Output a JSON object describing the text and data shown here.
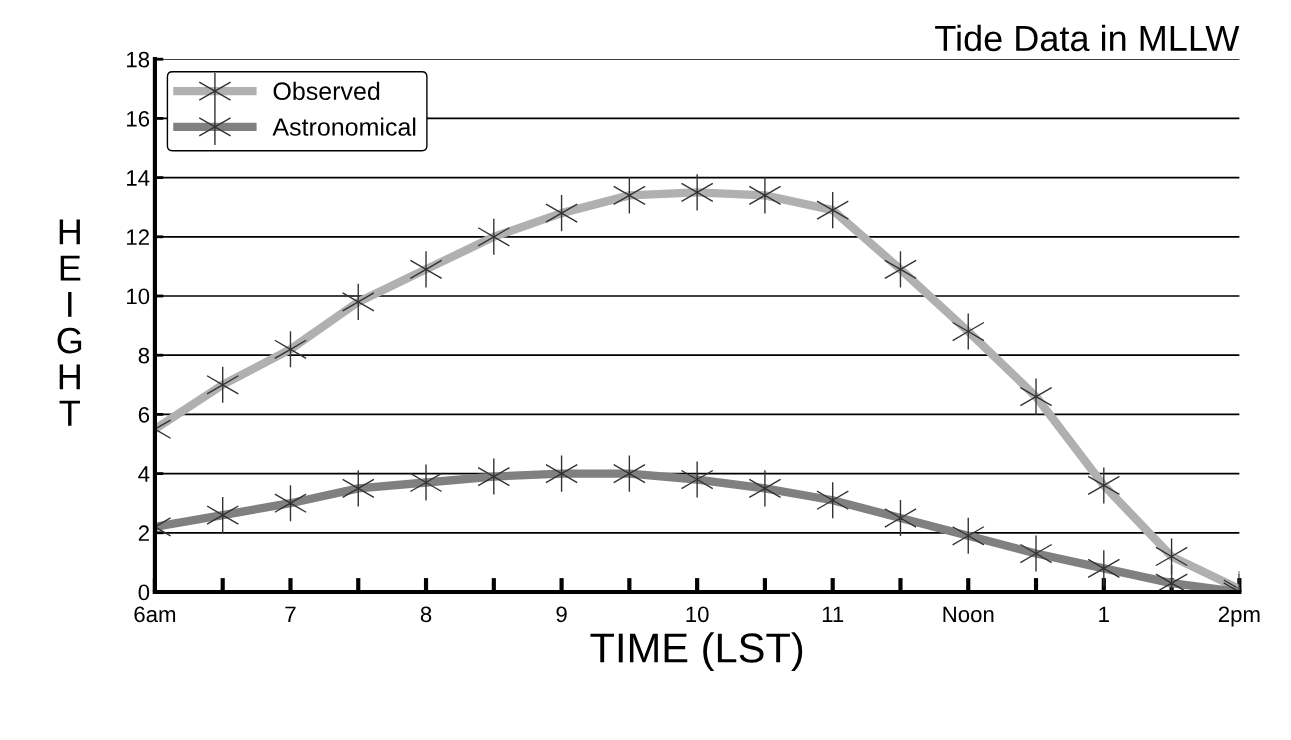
{
  "chart_data": {
    "type": "line",
    "title": "Tide Data in MLLW",
    "xlabel": "TIME (LST)",
    "ylabel": "HEIGHT",
    "categories": [
      "6am",
      null,
      "7",
      null,
      "8",
      null,
      "9",
      null,
      "10",
      null,
      "11",
      null,
      "Noon",
      null,
      "1",
      null,
      "2pm"
    ],
    "series": [
      {
        "name": "Observed",
        "color": "#b0b0b0",
        "values": [
          5.5,
          7,
          8.2,
          9.8,
          10.9,
          12,
          12.8,
          13.4,
          13.5,
          13.4,
          12.9,
          10.9,
          8.8,
          6.6,
          3.6,
          1.2,
          0.1
        ]
      },
      {
        "name": "Astronomical",
        "color": "#808080",
        "values": [
          2.2,
          2.6,
          3.0,
          3.5,
          3.7,
          3.9,
          4.0,
          4.0,
          3.8,
          3.5,
          3.1,
          2.5,
          1.9,
          1.3,
          0.8,
          0.3,
          0.0
        ]
      }
    ],
    "ylim": [
      0,
      18
    ],
    "yticks": [
      0,
      2,
      4,
      6,
      8,
      10,
      12,
      14,
      16,
      18
    ],
    "grid": "y",
    "legend": "top left",
    "marker": "cross",
    "line_style": "solid"
  }
}
